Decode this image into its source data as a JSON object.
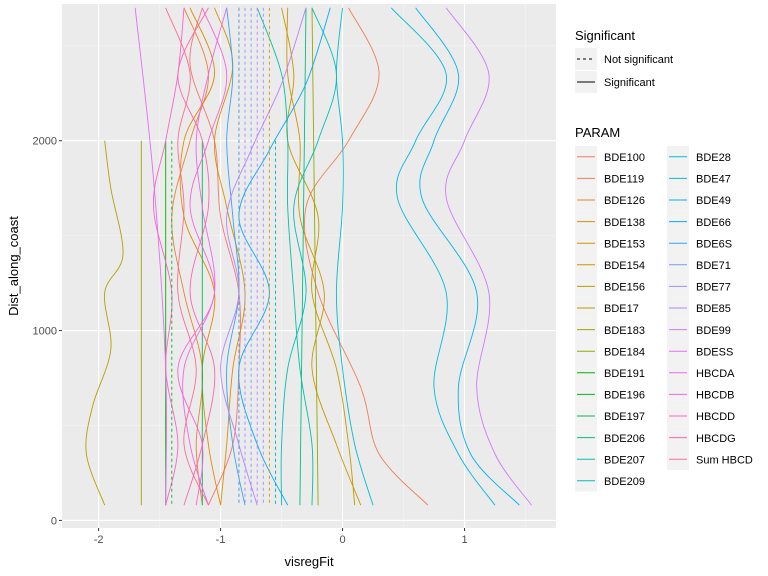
{
  "chart_data": {
    "type": "line",
    "title": "",
    "xlabel": "visregFit",
    "ylabel": "Dist_along_coast",
    "xlim": [
      -2.3,
      1.75
    ],
    "ylim": [
      -40,
      2720
    ],
    "x_ticks": [
      -2,
      -1,
      0,
      1
    ],
    "x_tick_labels": [
      "-2",
      "-1",
      "0",
      "1"
    ],
    "y_ticks": [
      0,
      1000,
      2000
    ],
    "y_tick_labels": [
      "0",
      "1000",
      "2000"
    ],
    "grid": true,
    "legend_position": "right",
    "linetype_legend": {
      "title": "Significant",
      "entries": [
        {
          "label": "Not significant",
          "dash": "dashed"
        },
        {
          "label": "Significant",
          "dash": "solid"
        }
      ]
    },
    "color_legend": {
      "title": "PARAM",
      "columns": 2
    },
    "series": [
      {
        "name": "BDE100",
        "color": "#F8766D",
        "significant": true,
        "x": [
          -1.15,
          -1.25,
          -1.05,
          -1.0,
          -0.85,
          -0.85,
          -0.9,
          -1.1
        ],
        "y": [
          2700,
          2400,
          2000,
          1600,
          1200,
          800,
          400,
          80
        ]
      },
      {
        "name": "BDE119",
        "color": "#F27D52",
        "significant": true,
        "x": [
          0.05,
          0.3,
          0.05,
          -0.3,
          -0.2,
          0.15,
          0.3,
          0.7
        ],
        "y": [
          2700,
          2350,
          2000,
          1650,
          1200,
          700,
          350,
          80
        ]
      },
      {
        "name": "BDE126",
        "color": "#EA8331",
        "significant": true,
        "x": [
          -1.3,
          -1.1,
          -1.25,
          -1.4,
          -1.3,
          -1.15,
          -1.2,
          -1.15
        ],
        "y": [
          2700,
          2350,
          2000,
          1600,
          1200,
          800,
          400,
          80
        ]
      },
      {
        "name": "BDE138",
        "color": "#E18A00",
        "significant": true,
        "x": [
          -1.25,
          -1.05,
          -1.3,
          -1.3,
          -1.05,
          -1.15,
          -1.1,
          -1.0
        ],
        "y": [
          2700,
          2350,
          2000,
          1600,
          1200,
          800,
          400,
          80
        ]
      },
      {
        "name": "BDE153",
        "color": "#D89000",
        "significant": true,
        "x": [
          -1.05,
          -0.9,
          -1.05,
          -0.95,
          -0.8,
          -0.9,
          -0.95,
          -1.0
        ],
        "y": [
          2700,
          2400,
          2000,
          1650,
          1200,
          800,
          400,
          80
        ]
      },
      {
        "name": "BDE154",
        "color": "#CD9600",
        "significant": true,
        "x": [
          -0.45,
          -0.45,
          -0.35,
          -0.35,
          -0.15,
          -0.25,
          -0.05,
          0.15
        ],
        "y": [
          2700,
          2350,
          2000,
          1600,
          1200,
          800,
          400,
          80
        ]
      },
      {
        "name": "BDE156",
        "color": "#C09B00",
        "significant": true,
        "x": [
          -0.5,
          -0.4,
          -0.45,
          -0.2,
          -0.25,
          -0.05,
          0.05,
          0.1
        ],
        "y": [
          2700,
          2350,
          2000,
          1600,
          1200,
          800,
          400,
          80
        ]
      },
      {
        "name": "BDE17",
        "color": "#B3A000",
        "significant": true,
        "x": [
          -1.95,
          -1.9,
          -1.8,
          -1.95,
          -1.9,
          -2.05,
          -2.1,
          -1.95
        ],
        "y": [
          2000,
          1750,
          1400,
          1200,
          900,
          600,
          350,
          80
        ]
      },
      {
        "name": "BDE183",
        "color": "#A3A500",
        "significant": true,
        "x": [
          -1.65,
          -1.65
        ],
        "y": [
          2000,
          80
        ]
      },
      {
        "name": "BDE184",
        "color": "#93AA00",
        "significant": true,
        "x": [
          -0.25,
          -0.2
        ],
        "y": [
          2700,
          80
        ]
      },
      {
        "name": "BDE191",
        "color": "#00B500",
        "significant": true,
        "x": [
          -1.45,
          -1.45
        ],
        "y": [
          2000,
          80
        ]
      },
      {
        "name": "BDE196",
        "color": "#00B81F",
        "significant": false,
        "x": [
          -0.55,
          -0.55
        ],
        "y": [
          2000,
          80
        ]
      },
      {
        "name": "BDE197",
        "color": "#00BC59",
        "significant": true,
        "x": [
          -1.15,
          -1.15
        ],
        "y": [
          2000,
          80
        ]
      },
      {
        "name": "BDE206",
        "color": "#00BF7D",
        "significant": true,
        "x": [
          -0.3,
          -0.35
        ],
        "y": [
          2700,
          80
        ]
      },
      {
        "name": "BDE207",
        "color": "#00C1A3",
        "significant": true,
        "x": [
          -0.7,
          -0.5,
          -0.45,
          -0.45,
          -0.4,
          -0.35,
          -0.25,
          -0.25
        ],
        "y": [
          2700,
          2350,
          2000,
          1650,
          1200,
          800,
          400,
          80
        ]
      },
      {
        "name": "BDE209",
        "color": "#00C0B8",
        "significant": true,
        "x": [
          -0.25,
          -0.05,
          -0.2,
          -0.4,
          -0.3,
          -0.45,
          -0.5,
          -0.5
        ],
        "y": [
          2700,
          2350,
          2000,
          1650,
          1200,
          800,
          400,
          80
        ]
      },
      {
        "name": "BDE28",
        "color": "#00BDD0",
        "significant": true,
        "x": [
          0.0,
          -0.05,
          0.0,
          0.0,
          -0.05,
          0.0,
          0.1,
          0.25
        ],
        "y": [
          2700,
          2350,
          2000,
          1650,
          1200,
          800,
          400,
          80
        ]
      },
      {
        "name": "BDE47",
        "color": "#00B9E3",
        "significant": true,
        "x": [
          0.4,
          0.85,
          0.6,
          0.45,
          0.85,
          0.75,
          0.95,
          1.25
        ],
        "y": [
          2700,
          2350,
          2000,
          1700,
          1200,
          700,
          350,
          80
        ]
      },
      {
        "name": "BDE49",
        "color": "#00B3F2",
        "significant": true,
        "x": [
          0.6,
          0.95,
          0.75,
          0.65,
          1.1,
          0.95,
          1.05,
          1.45
        ],
        "y": [
          2700,
          2350,
          2000,
          1700,
          1200,
          700,
          350,
          80
        ]
      },
      {
        "name": "BDE66",
        "color": "#00ABFD",
        "significant": true,
        "x": [
          -0.1,
          -0.3,
          -0.6,
          -0.85,
          -0.6,
          -0.85,
          -0.7,
          -0.45
        ],
        "y": [
          2700,
          2300,
          1950,
          1600,
          1200,
          800,
          400,
          80
        ]
      },
      {
        "name": "BDE6S",
        "color": "#35A2FF",
        "significant": true,
        "x": [
          -0.95,
          -0.9,
          -0.95,
          -0.9,
          -0.85,
          -0.95,
          -0.9,
          -0.8
        ],
        "y": [
          2700,
          2350,
          2000,
          1600,
          1200,
          800,
          400,
          80
        ]
      },
      {
        "name": "BDE71",
        "color": "#7997FF",
        "significant": false,
        "x": [
          -0.75,
          -0.75
        ],
        "y": [
          2700,
          80
        ]
      },
      {
        "name": "BDE77",
        "color": "#9F8CFF",
        "significant": false,
        "x": [
          -0.65,
          -0.65
        ],
        "y": [
          2700,
          80
        ]
      },
      {
        "name": "BDE85",
        "color": "#BC81FF",
        "significant": true,
        "x": [
          -0.3,
          -0.5,
          -0.75,
          -0.95,
          -0.85,
          -1.0,
          -0.85,
          -0.7
        ],
        "y": [
          2700,
          2300,
          1950,
          1600,
          1200,
          800,
          400,
          80
        ]
      },
      {
        "name": "BDE99",
        "color": "#D078FF",
        "significant": true,
        "x": [
          0.85,
          1.2,
          1.0,
          0.85,
          1.2,
          1.1,
          1.25,
          1.55
        ],
        "y": [
          2700,
          2350,
          2000,
          1700,
          1200,
          700,
          350,
          80
        ]
      },
      {
        "name": "BDESS",
        "color": "#E26EF7",
        "significant": true,
        "x": [
          -1.7,
          -1.55,
          -1.45,
          -1.45
        ],
        "y": [
          2700,
          1800,
          800,
          80
        ]
      },
      {
        "name": "HBCDA",
        "color": "#EF67EB",
        "significant": true,
        "x": [
          -0.95,
          -1.1,
          -1.2,
          -1.15,
          -1.05,
          -1.3,
          -1.25,
          -1.1
        ],
        "y": [
          2700,
          2350,
          2000,
          1650,
          1200,
          800,
          400,
          80
        ]
      },
      {
        "name": "HBCDB",
        "color": "#F863DF",
        "significant": true,
        "x": [
          -1.15,
          -0.95,
          -1.1,
          -1.25,
          -1.05,
          -1.35,
          -1.15,
          -1.2
        ],
        "y": [
          2700,
          2350,
          2000,
          1650,
          1200,
          800,
          400,
          80
        ]
      },
      {
        "name": "HBCDD",
        "color": "#FE61CF",
        "significant": true,
        "x": [
          -1.3,
          -1.35,
          -1.45,
          -1.55,
          -1.4,
          -1.45,
          -1.35,
          -1.45
        ],
        "y": [
          2700,
          2350,
          2000,
          1650,
          1200,
          800,
          400,
          80
        ]
      },
      {
        "name": "HBCDG",
        "color": "#FF64B0",
        "significant": true,
        "x": [
          -1.1,
          -1.35,
          -1.15,
          -1.1,
          -1.25,
          -1.05,
          -1.15,
          -1.3
        ],
        "y": [
          2700,
          2350,
          2000,
          1650,
          1200,
          800,
          400,
          80
        ]
      },
      {
        "name": "Sum HBCD",
        "color": "#FF6C91",
        "significant": true,
        "x": [
          -1.45,
          -1.25,
          -1.35,
          -1.3,
          -1.35,
          -1.2,
          -1.3,
          -1.1
        ],
        "y": [
          2700,
          2350,
          2000,
          1650,
          1200,
          800,
          400,
          80
        ]
      }
    ],
    "extra_lines": [
      {
        "color": "#00B81F",
        "significant": false,
        "x": [
          -1.4,
          -1.4
        ],
        "y": [
          2000,
          80
        ]
      },
      {
        "color": "#00B81F",
        "significant": false,
        "x": [
          -0.85,
          -0.85
        ],
        "y": [
          2700,
          80
        ]
      },
      {
        "color": "#CD9600",
        "significant": false,
        "x": [
          -0.6,
          -0.6
        ],
        "y": [
          2700,
          80
        ]
      },
      {
        "color": "#7997FF",
        "significant": false,
        "x": [
          -0.85,
          -0.85
        ],
        "y": [
          2700,
          80
        ]
      },
      {
        "color": "#9F8CFF",
        "significant": false,
        "x": [
          -0.8,
          -0.8
        ],
        "y": [
          2700,
          80
        ]
      },
      {
        "color": "#00BDD0",
        "significant": false,
        "x": [
          -0.55,
          -0.55
        ],
        "y": [
          2000,
          80
        ]
      },
      {
        "color": "#BC81FF",
        "significant": false,
        "x": [
          -0.7,
          -0.7
        ],
        "y": [
          2700,
          80
        ]
      }
    ]
  }
}
